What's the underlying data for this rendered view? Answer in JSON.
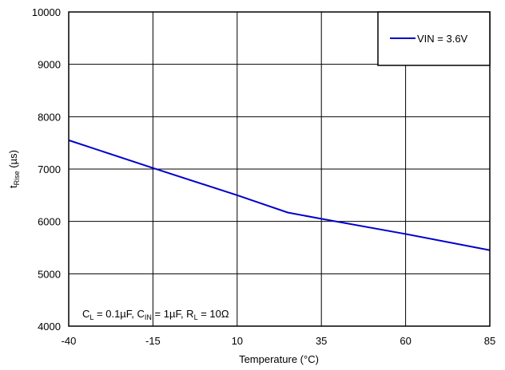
{
  "chart_data": {
    "type": "line",
    "xlabel": "Temperature (°C)",
    "ylabel": {
      "main": "t",
      "sub": "Rise",
      "unit": " (µs)"
    },
    "xlim": [
      -40,
      85
    ],
    "ylim": [
      4000,
      10000
    ],
    "xticks": [
      "-40",
      "-15",
      "10",
      "35",
      "60",
      "85"
    ],
    "yticks": [
      "4000",
      "5000",
      "6000",
      "7000",
      "8000",
      "9000",
      "10000"
    ],
    "grid": true,
    "legend_position": "top-right",
    "series": [
      {
        "name": "VIN = 3.6V",
        "color": "#0000cc",
        "x": [
          -40,
          -15,
          10,
          25,
          35,
          60,
          85
        ],
        "y": [
          7550,
          7020,
          6500,
          6170,
          6050,
          5760,
          5450
        ]
      }
    ],
    "annotation": {
      "parts": [
        {
          "text": "C"
        },
        {
          "sub": "L"
        },
        {
          "text": " = 0.1µF, C"
        },
        {
          "sub": "IN"
        },
        {
          "text": " = 1µF, R"
        },
        {
          "sub": "L"
        },
        {
          "text": " = 10Ω"
        }
      ]
    }
  }
}
